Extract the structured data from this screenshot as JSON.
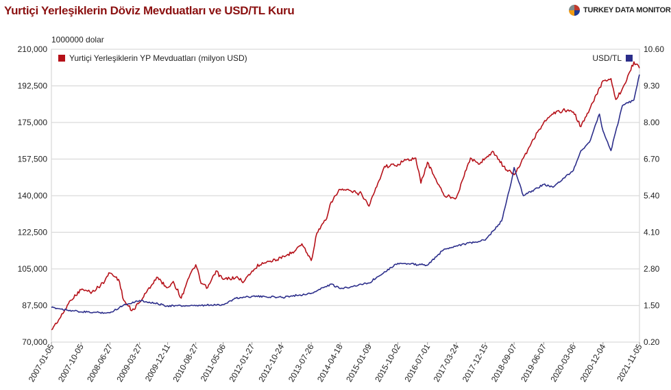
{
  "title": "Yurtiçi Yerleşiklerin Döviz Mevduatları ve USD/TL Kuru",
  "brand": {
    "name": "TURKEY DATA MONITOR",
    "colors": [
      "#c0392b",
      "#1f3a93",
      "#f39c12",
      "#7f8c8d"
    ]
  },
  "chart_data": {
    "type": "line",
    "left_axis_unit": "1000000 dolar",
    "grid": true,
    "legend": "top",
    "x_ticks": [
      "2007-01-05",
      "2007-10-05",
      "2008-06-27",
      "2009-03-27",
      "2009-12-11",
      "2010-08-27",
      "2011-05-06",
      "2012-01-27",
      "2012-10-24",
      "2013-07-26",
      "2014-04-18",
      "2015-01-09",
      "2015-10-02",
      "2016-07-01",
      "2017-03-24",
      "2017-12-15",
      "2018-09-07",
      "2019-06-07",
      "2020-03-06",
      "2020-12-04",
      "2021-11-05"
    ],
    "y_left": {
      "min": 70000,
      "max": 210000,
      "ticks": [
        "70,000",
        "87,500",
        "105,000",
        "122,500",
        "140,000",
        "157,500",
        "175,000",
        "192,500",
        "210,000"
      ]
    },
    "y_right": {
      "min": 0.2,
      "max": 10.6,
      "ticks": [
        "0.20",
        "1.50",
        "2.80",
        "4.10",
        "5.40",
        "6.70",
        "8.00",
        "9.30",
        "10.60"
      ]
    },
    "series": [
      {
        "name": "Yurtiçi Yerleşiklerin YP Mevduatları (milyon USD)",
        "axis": "left",
        "color": "#b51018",
        "points": [
          [
            "2007-01-05",
            76000
          ],
          [
            "2007-04-01",
            82000
          ],
          [
            "2007-07-01",
            90000
          ],
          [
            "2007-10-05",
            95000
          ],
          [
            "2008-01-15",
            94000
          ],
          [
            "2008-04-01",
            97000
          ],
          [
            "2008-06-27",
            103000
          ],
          [
            "2008-09-15",
            100000
          ],
          [
            "2008-11-01",
            90000
          ],
          [
            "2009-01-15",
            85000
          ],
          [
            "2009-03-27",
            89000
          ],
          [
            "2009-06-01",
            94000
          ],
          [
            "2009-09-01",
            101000
          ],
          [
            "2009-12-11",
            96000
          ],
          [
            "2010-02-01",
            99000
          ],
          [
            "2010-04-15",
            91000
          ],
          [
            "2010-06-15",
            100000
          ],
          [
            "2010-08-27",
            107000
          ],
          [
            "2010-10-15",
            98000
          ],
          [
            "2010-12-15",
            96000
          ],
          [
            "2011-03-01",
            104000
          ],
          [
            "2011-05-06",
            100000
          ],
          [
            "2011-09-01",
            101000
          ],
          [
            "2011-11-15",
            99000
          ],
          [
            "2012-01-27",
            104000
          ],
          [
            "2012-05-01",
            108000
          ],
          [
            "2012-10-24",
            110000
          ],
          [
            "2013-02-01",
            113000
          ],
          [
            "2013-05-01",
            117000
          ],
          [
            "2013-07-26",
            109000
          ],
          [
            "2013-09-15",
            122000
          ],
          [
            "2013-12-15",
            129000
          ],
          [
            "2014-01-25",
            137000
          ],
          [
            "2014-04-18",
            143000
          ],
          [
            "2014-08-01",
            142000
          ],
          [
            "2014-11-01",
            141000
          ],
          [
            "2015-01-09",
            135000
          ],
          [
            "2015-04-01",
            146000
          ],
          [
            "2015-06-01",
            154000
          ],
          [
            "2015-10-02",
            155000
          ],
          [
            "2015-12-15",
            157000
          ],
          [
            "2016-03-15",
            158000
          ],
          [
            "2016-05-01",
            146000
          ],
          [
            "2016-07-01",
            156000
          ],
          [
            "2016-09-15",
            148000
          ],
          [
            "2016-12-01",
            140000
          ],
          [
            "2017-03-24",
            139000
          ],
          [
            "2017-05-15",
            147000
          ],
          [
            "2017-08-01",
            158000
          ],
          [
            "2017-10-15",
            155000
          ],
          [
            "2017-12-15",
            158000
          ],
          [
            "2018-03-01",
            161000
          ],
          [
            "2018-06-01",
            154000
          ],
          [
            "2018-09-07",
            150000
          ],
          [
            "2018-12-01",
            158000
          ],
          [
            "2019-03-01",
            167000
          ],
          [
            "2019-06-07",
            175000
          ],
          [
            "2019-09-01",
            179000
          ],
          [
            "2019-12-01",
            181000
          ],
          [
            "2020-03-06",
            180000
          ],
          [
            "2020-05-15",
            173000
          ],
          [
            "2020-08-01",
            181000
          ],
          [
            "2020-12-04",
            195000
          ],
          [
            "2021-02-15",
            196000
          ],
          [
            "2021-04-01",
            186000
          ],
          [
            "2021-07-01",
            194000
          ],
          [
            "2021-09-15",
            204000
          ],
          [
            "2021-11-05",
            201000
          ]
        ]
      },
      {
        "name": "USD/TL",
        "axis": "right",
        "color": "#2b2d8a",
        "points": [
          [
            "2007-01-05",
            1.43
          ],
          [
            "2007-10-05",
            1.27
          ],
          [
            "2008-06-27",
            1.24
          ],
          [
            "2008-11-01",
            1.52
          ],
          [
            "2009-03-27",
            1.68
          ],
          [
            "2009-12-11",
            1.49
          ],
          [
            "2010-08-27",
            1.49
          ],
          [
            "2011-05-06",
            1.53
          ],
          [
            "2011-09-01",
            1.76
          ],
          [
            "2012-01-27",
            1.83
          ],
          [
            "2012-10-24",
            1.79
          ],
          [
            "2013-07-26",
            1.93
          ],
          [
            "2014-01-25",
            2.26
          ],
          [
            "2014-04-18",
            2.1
          ],
          [
            "2015-01-09",
            2.3
          ],
          [
            "2015-06-01",
            2.7
          ],
          [
            "2015-10-02",
            3.0
          ],
          [
            "2016-07-01",
            2.93
          ],
          [
            "2016-12-01",
            3.5
          ],
          [
            "2017-03-24",
            3.62
          ],
          [
            "2017-12-15",
            3.82
          ],
          [
            "2018-05-15",
            4.5
          ],
          [
            "2018-08-13",
            5.9
          ],
          [
            "2018-09-07",
            6.4
          ],
          [
            "2018-12-01",
            5.4
          ],
          [
            "2019-06-07",
            5.8
          ],
          [
            "2019-09-01",
            5.7
          ],
          [
            "2020-03-06",
            6.3
          ],
          [
            "2020-05-15",
            7.0
          ],
          [
            "2020-08-01",
            7.3
          ],
          [
            "2020-11-01",
            8.3
          ],
          [
            "2020-12-04",
            7.7
          ],
          [
            "2021-02-15",
            7.0
          ],
          [
            "2021-06-01",
            8.6
          ],
          [
            "2021-09-15",
            8.8
          ],
          [
            "2021-11-05",
            9.7
          ]
        ]
      }
    ]
  }
}
